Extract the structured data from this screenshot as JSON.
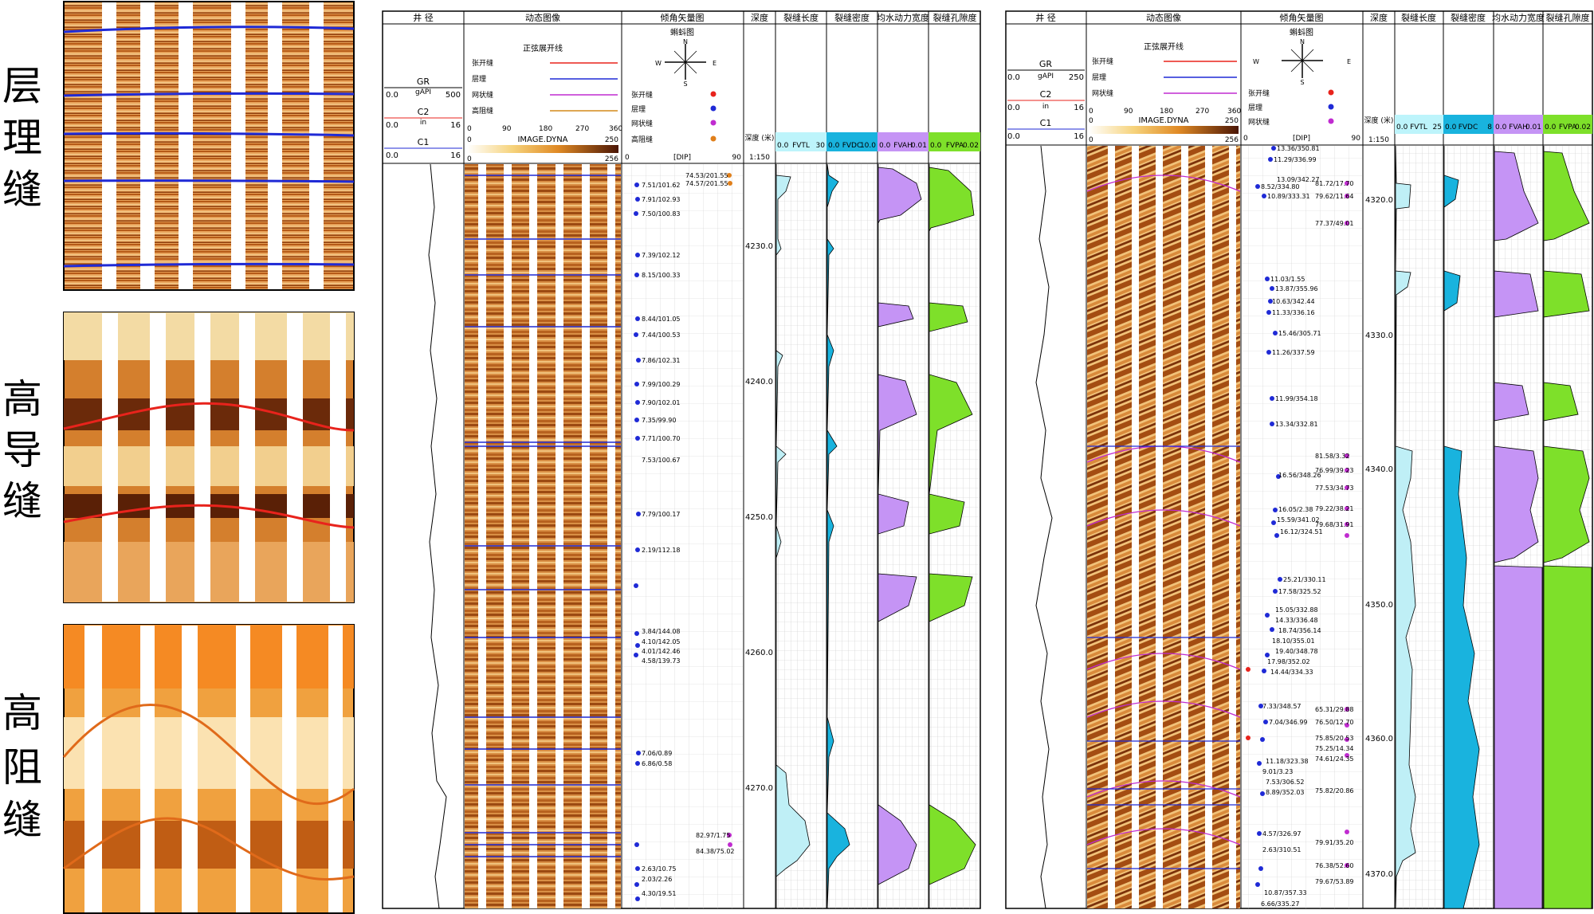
{
  "side_labels": {
    "bedding": [
      "层",
      "理",
      "缝"
    ],
    "conductive": [
      "高",
      "导",
      "缝"
    ],
    "resistive": [
      "高",
      "阻",
      "缝"
    ]
  },
  "colors": {
    "bedding_line": "#1f2ad6",
    "conductive_line": "#e8231c",
    "resistive_line": "#e06a1a",
    "sheet_line": "#000000",
    "fvtl_fill": "#bfeff6",
    "fvdc_fill": "#19b3de",
    "fvah_fill": "#c594f5",
    "fvpa_fill": "#7ee02a",
    "scale_head": "#bdf4fb",
    "image_dark": "#6b2f0a",
    "image_mid": "#c46a1c",
    "image_light": "#f3d9a0"
  },
  "logs": [
    {
      "id": "left",
      "columns": {
        "caliper": "井 径",
        "image": "动态图像",
        "dip": "倾角矢量图",
        "depth": "深度",
        "fvtl": "裂缝长度",
        "fvdc": "裂缝密度",
        "fvah": "均水动力宽度",
        "fvpa": "裂缝孔隙度"
      },
      "curves": [
        {
          "name": "GR",
          "unit": "gAPI",
          "min": "0.0",
          "max": "500"
        },
        {
          "name": "C2",
          "unit": "in",
          "min": "0.0",
          "max": "16"
        },
        {
          "name": "C1",
          "unit": "in",
          "min": "0.0",
          "max": "16"
        }
      ],
      "sine_legend": {
        "title": "正弦展开线",
        "items": [
          "张开缝",
          "层理",
          "网状缝",
          "高阻缝"
        ],
        "image_scale": {
          "name": "IMAGE.DYNA",
          "min": "0",
          "max": "250",
          "ticks": [
            "0",
            "90",
            "180",
            "270",
            "360"
          ],
          "bottom_min": "0",
          "bottom_max": "256"
        }
      },
      "dip_legend": {
        "title": "蝌蚪图",
        "compass": [
          "N",
          "W",
          "E",
          "S"
        ],
        "items": [
          "张开缝",
          "层理",
          "网状缝",
          "高阻缝"
        ],
        "axis": {
          "min": "0",
          "label": "[DIP]",
          "max": "90"
        }
      },
      "depth_head": {
        "label": "深度 (米)",
        "scale": "1:150"
      },
      "track_heads": [
        {
          "min": "0.0",
          "name": "FVTL",
          "max": "30"
        },
        {
          "min": "0.0",
          "name": "FVDC",
          "max": "10.0"
        },
        {
          "min": "0.0",
          "name": "FVAH",
          "max": "0.01"
        },
        {
          "min": "0.0",
          "name": "FVPA",
          "max": "0.02"
        }
      ],
      "depth_ticks": [
        "4230.0",
        "4240.0",
        "4250.0",
        "4260.0",
        "4270.0"
      ],
      "dip_labels": [
        "7.51/101.62",
        "7.91/102.93",
        "7.50/100.83",
        "7.39/102.12",
        "8.15/100.33",
        "8.44/101.05",
        "7.44/100.53",
        "7.86/102.31",
        "7.99/100.29",
        "7.90/102.01",
        "7.35/99.90",
        "7.71/100.70",
        "7.53/100.67",
        "7.79/100.17",
        "2.19/112.18",
        "3.84/144.08",
        "4.10/142.05",
        "4.01/142.46",
        "4.58/139.73",
        "7.06/0.89",
        "6.86/0.58",
        "2.63/10.75",
        "2.03/2.26",
        "4.30/19.51"
      ],
      "dip_labels_right": [
        "74.53/201.55",
        "74.57/201.55",
        "82.97/1.75",
        "84.38/75.02"
      ]
    },
    {
      "id": "right",
      "columns": {
        "caliper": "井 径",
        "image": "动态图像",
        "dip": "倾角矢量图",
        "depth": "深度",
        "fvtl": "裂缝长度",
        "fvdc": "裂缝密度",
        "fvah": "均水动力宽度",
        "fvpa": "裂缝孔隙度"
      },
      "curves": [
        {
          "name": "GR",
          "unit": "gAPI",
          "min": "0.0",
          "max": "250"
        },
        {
          "name": "C2",
          "unit": "in",
          "min": "0.0",
          "max": "16"
        },
        {
          "name": "C1",
          "unit": "in",
          "min": "0.0",
          "max": "16"
        }
      ],
      "sine_legend": {
        "title": "正弦展开线",
        "items": [
          "张开缝",
          "层理",
          "网状缝"
        ],
        "image_scale": {
          "name": "IMAGE.DYNA",
          "min": "0",
          "max": "250",
          "ticks": [
            "0",
            "90",
            "180",
            "270",
            "360"
          ],
          "bottom_min": "0",
          "bottom_max": "256"
        }
      },
      "dip_legend": {
        "title": "蝌蚪图",
        "compass": [
          "N",
          "W",
          "E",
          "S"
        ],
        "items": [
          "张开缝",
          "层理",
          "网状缝"
        ],
        "axis": {
          "min": "0",
          "label": "[DIP]",
          "max": "90"
        }
      },
      "depth_head": {
        "label": "深度 (米)",
        "scale": "1:150"
      },
      "track_heads": [
        {
          "min": "0.0",
          "name": "FVTL",
          "max": "25"
        },
        {
          "min": "0.0",
          "name": "FVDC",
          "max": "8"
        },
        {
          "min": "0.0",
          "name": "FVAH",
          "max": "0.01"
        },
        {
          "min": "0.0",
          "name": "FVPA",
          "max": "0.02"
        }
      ],
      "depth_ticks": [
        "4320.0",
        "4330.0",
        "4340.0",
        "4350.0",
        "4360.0",
        "4370.0"
      ],
      "dip_labels": [
        "13.36/350.81",
        "11.29/336.99",
        "13.09/342.27",
        "8.52/334.80",
        "10.89/333.31",
        "11.03/1.55",
        "13.87/355.96",
        "10.63/342.44",
        "11.33/336.16",
        "15.46/305.71",
        "11.26/337.59",
        "11.99/354.18",
        "13.34/332.81",
        "16.56/348.26",
        "16.05/2.38",
        "15.59/341.02",
        "16.12/324.51",
        "25.21/330.11",
        "17.58/325.52",
        "15.05/332.88",
        "14.33/336.48",
        "18.74/356.14",
        "18.10/355.01",
        "19.40/348.78",
        "17.98/352.02",
        "14.44/334.33",
        "7.33/348.57",
        "7.04/346.99",
        "11.18/323.38",
        "9.01/3.23",
        "7.53/306.52",
        "8.89/352.03",
        "4.57/326.97",
        "2.63/310.51",
        "10.87/357.33",
        "6.66/335.27"
      ],
      "dip_labels_right": [
        "81.72/17.70",
        "79.62/11.64",
        "77.37/49.01",
        "81.58/3.32",
        "76.99/39.23",
        "77.53/34.73",
        "79.22/38.21",
        "79.68/31.91",
        "65.31/29.88",
        "76.50/12.70",
        "75.85/20.53",
        "75.25/14.34",
        "74.61/24.35",
        "75.82/20.86",
        "79.91/35.20",
        "76.38/52.60",
        "79.67/53.89"
      ]
    }
  ]
}
